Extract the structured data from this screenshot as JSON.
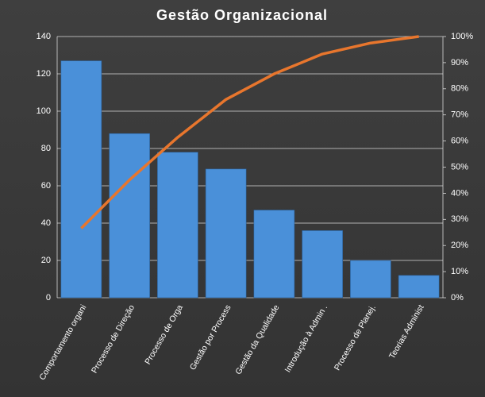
{
  "chart_data": {
    "type": "pareto",
    "title": "Gestão  Organizacional",
    "categories": [
      "Comportamento organi",
      "Processo de Direção",
      "Processo de Orga",
      "Gestão por Process",
      "Gestão da Qualidade",
      "Introdução à Admin .",
      "Processo de Planej.",
      "Teorias Administ"
    ],
    "series": [
      {
        "type": "bar",
        "color": "#4a90d9",
        "values": [
          127,
          88,
          78,
          69,
          47,
          36,
          20,
          12
        ]
      },
      {
        "type": "line",
        "axis": "y2",
        "color": "#e8762d",
        "values": [
          26.6,
          45.1,
          61.4,
          75.9,
          85.7,
          93.3,
          97.5,
          100
        ]
      }
    ],
    "ylim": [
      0,
      140
    ],
    "yticks": [
      0,
      20,
      40,
      60,
      80,
      100,
      120,
      140
    ],
    "y2lim": [
      0,
      100
    ],
    "y2ticks": [
      {
        "value": 0,
        "label": "0%"
      },
      {
        "value": 10,
        "label": "10%"
      },
      {
        "value": 20,
        "label": "20%"
      },
      {
        "value": 30,
        "label": "30%"
      },
      {
        "value": 40,
        "label": "40%"
      },
      {
        "value": 50,
        "label": "50%"
      },
      {
        "value": 60,
        "label": "60%"
      },
      {
        "value": 70,
        "label": "70%"
      },
      {
        "value": 80,
        "label": "80%"
      },
      {
        "value": 90,
        "label": "90%"
      },
      {
        "value": 100,
        "label": "100%"
      }
    ],
    "grid": true
  }
}
